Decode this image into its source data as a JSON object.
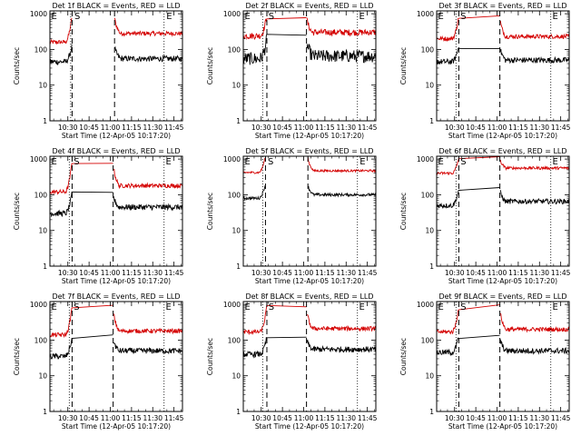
{
  "figure": {
    "xlabel": "Start Time (12-Apr-05 10:17:20)",
    "ylabel": "Counts/sec",
    "x_tick_labels": [
      "10:30",
      "10:45",
      "11:00",
      "11:15",
      "11:30",
      "11:45"
    ],
    "y_tick_labels": [
      "1",
      "10",
      "100",
      "1000"
    ],
    "colors": {
      "events": "#000000",
      "lld": "#d40000",
      "axes": "#000000",
      "background": "#ffffff"
    },
    "markers": {
      "E": "E",
      "S": "S"
    }
  },
  "chart_data": [
    {
      "type": "line",
      "title": "Det 1f BLACK = Events, RED = LLD",
      "xlabel": "Start Time (12-Apr-05 10:17:20)",
      "ylabel": "Counts/sec",
      "xlim": [
        "10:17:20",
        "11:51:00"
      ],
      "ylim": [
        1,
        1200
      ],
      "y_scale": "log",
      "events": {
        "pre": 45,
        "peak": 130,
        "post": 55,
        "noise": 0.08
      },
      "lld": {
        "pre": 160,
        "peak": 900,
        "post": 280,
        "noise": 0.06
      },
      "dashed_lines": [
        "10:33:00",
        "11:03:00"
      ],
      "dotted_lines": [
        "10:32:00",
        "11:38:00"
      ],
      "markers": [
        {
          "label": "E",
          "x": "10:17:40"
        },
        {
          "label": "S",
          "x": "10:34:00"
        },
        {
          "label": "E",
          "x": "11:39:00"
        }
      ]
    },
    {
      "type": "line",
      "title": "Det 2f BLACK = Events, RED = LLD",
      "xlabel": "Start Time (12-Apr-05 10:17:20)",
      "ylabel": "Counts/sec",
      "xlim": [
        "10:17:20",
        "11:51:00"
      ],
      "ylim": [
        1,
        1200
      ],
      "y_scale": "log",
      "events": {
        "pre": 55,
        "peak": 200,
        "post": 65,
        "noise": 0.18
      },
      "lld": {
        "pre": 240,
        "peak": 900,
        "post": 300,
        "noise": 0.09
      },
      "dashed_lines": [
        "10:34:00",
        "11:02:00"
      ],
      "dotted_lines": [
        "10:31:00",
        "11:38:00"
      ],
      "markers": [
        {
          "label": "E",
          "x": "10:17:40"
        },
        {
          "label": "S",
          "x": "10:34:30"
        },
        {
          "label": "E",
          "x": "11:38:30"
        }
      ]
    },
    {
      "type": "line",
      "title": "Det 3f BLACK = Events, RED = LLD",
      "xlabel": "Start Time (12-Apr-05 10:17:20)",
      "ylabel": "Counts/sec",
      "xlim": [
        "10:17:20",
        "11:51:00"
      ],
      "ylim": [
        1,
        1200
      ],
      "y_scale": "log",
      "events": {
        "pre": 45,
        "peak": 130,
        "post": 50,
        "noise": 0.08
      },
      "lld": {
        "pre": 200,
        "peak": 900,
        "post": 230,
        "noise": 0.06
      },
      "dashed_lines": [
        "10:33:00",
        "11:02:00"
      ],
      "dotted_lines": [
        "10:31:00",
        "11:38:00"
      ],
      "markers": [
        {
          "label": "E",
          "x": "10:17:40"
        },
        {
          "label": "S",
          "x": "10:33:30"
        },
        {
          "label": "E",
          "x": "11:38:30"
        }
      ]
    },
    {
      "type": "line",
      "title": "Det 4f BLACK = Events, RED = LLD",
      "xlabel": "Start Time (12-Apr-05 10:17:20)",
      "ylabel": "Counts/sec",
      "xlim": [
        "10:17:20",
        "11:51:00"
      ],
      "ylim": [
        1,
        1200
      ],
      "y_scale": "log",
      "events": {
        "pre": 30,
        "peak": 110,
        "post": 45,
        "noise": 0.08
      },
      "lld": {
        "pre": 120,
        "peak": 900,
        "post": 180,
        "noise": 0.06
      },
      "dashed_lines": [
        "10:33:00",
        "11:02:00"
      ],
      "dotted_lines": [
        "10:31:00",
        "11:38:00"
      ],
      "markers": [
        {
          "label": "E",
          "x": "10:17:40"
        },
        {
          "label": "S",
          "x": "10:33:30"
        },
        {
          "label": "E",
          "x": "11:38:30"
        }
      ]
    },
    {
      "type": "line",
      "title": "Det 5f BLACK = Events, RED = LLD",
      "xlabel": "Start Time (12-Apr-05 10:17:20)",
      "ylabel": "Counts/sec",
      "xlim": [
        "10:17:20",
        "11:51:00"
      ],
      "ylim": [
        1,
        1200
      ],
      "y_scale": "log",
      "events": {
        "pre": 80,
        "peak": 200,
        "post": 100,
        "noise": 0.04
      },
      "lld": {
        "pre": 420,
        "peak": 1200,
        "post": 470,
        "noise": 0.03
      },
      "dashed_lines": [
        "10:33:00",
        "11:03:00"
      ],
      "dotted_lines": [
        "10:31:00",
        "11:38:00"
      ],
      "markers": [
        {
          "label": "E",
          "x": "10:17:40"
        },
        {
          "label": "S",
          "x": "10:34:00"
        },
        {
          "label": "E",
          "x": "11:39:00"
        }
      ]
    },
    {
      "type": "line",
      "title": "Det 6f BLACK = Events, RED = LLD",
      "xlabel": "Start Time (12-Apr-05 10:17:20)",
      "ylabel": "Counts/sec",
      "xlim": [
        "10:17:20",
        "11:51:00"
      ],
      "ylim": [
        1,
        1200
      ],
      "y_scale": "log",
      "events": {
        "pre": 50,
        "peak": 150,
        "post": 65,
        "noise": 0.07
      },
      "lld": {
        "pre": 400,
        "peak": 1100,
        "post": 560,
        "noise": 0.04
      },
      "dashed_lines": [
        "10:33:00",
        "11:02:00"
      ],
      "dotted_lines": [
        "10:31:00",
        "11:38:00"
      ],
      "markers": [
        {
          "label": "E",
          "x": "10:17:40"
        },
        {
          "label": "S",
          "x": "10:33:30"
        },
        {
          "label": "E",
          "x": "11:38:30"
        }
      ]
    },
    {
      "type": "line",
      "title": "Det 7f BLACK = Events, RED = LLD",
      "xlabel": "Start Time (12-Apr-05 10:17:20)",
      "ylabel": "Counts/sec",
      "xlim": [
        "10:17:20",
        "11:51:00"
      ],
      "ylim": [
        1,
        1200
      ],
      "y_scale": "log",
      "events": {
        "pre": 35,
        "peak": 120,
        "post": 50,
        "noise": 0.08
      },
      "lld": {
        "pre": 140,
        "peak": 900,
        "post": 180,
        "noise": 0.06
      },
      "dashed_lines": [
        "10:33:00",
        "11:02:00"
      ],
      "dotted_lines": [
        "10:31:00",
        "11:38:00"
      ],
      "markers": [
        {
          "label": "E",
          "x": "10:17:40"
        },
        {
          "label": "S",
          "x": "10:33:30"
        },
        {
          "label": "E",
          "x": "11:38:30"
        }
      ]
    },
    {
      "type": "line",
      "title": "Det 8f BLACK = Events, RED = LLD",
      "xlabel": "Start Time (12-Apr-05 10:17:20)",
      "ylabel": "Counts/sec",
      "xlim": [
        "10:17:20",
        "11:51:00"
      ],
      "ylim": [
        1,
        1200
      ],
      "y_scale": "log",
      "events": {
        "pre": 40,
        "peak": 120,
        "post": 55,
        "noise": 0.08
      },
      "lld": {
        "pre": 170,
        "peak": 900,
        "post": 210,
        "noise": 0.06
      },
      "dashed_lines": [
        "10:34:00",
        "11:02:00"
      ],
      "dotted_lines": [
        "10:31:00",
        "11:38:00"
      ],
      "markers": [
        {
          "label": "E",
          "x": "10:17:40"
        },
        {
          "label": "S",
          "x": "10:34:30"
        },
        {
          "label": "E",
          "x": "11:38:30"
        }
      ]
    },
    {
      "type": "line",
      "title": "Det 9f BLACK = Events, RED = LLD",
      "xlabel": "Start Time (12-Apr-05 10:17:20)",
      "ylabel": "Counts/sec",
      "xlim": [
        "10:17:20",
        "11:51:00"
      ],
      "ylim": [
        1,
        1200
      ],
      "y_scale": "log",
      "events": {
        "pre": 45,
        "peak": 130,
        "post": 50,
        "noise": 0.08
      },
      "lld": {
        "pre": 170,
        "peak": 900,
        "post": 200,
        "noise": 0.06
      },
      "dashed_lines": [
        "10:33:00",
        "11:02:00"
      ],
      "dotted_lines": [
        "10:31:00",
        "11:38:00"
      ],
      "markers": [
        {
          "label": "E",
          "x": "10:17:40"
        },
        {
          "label": "S",
          "x": "10:33:30"
        },
        {
          "label": "E",
          "x": "11:38:30"
        }
      ]
    }
  ]
}
